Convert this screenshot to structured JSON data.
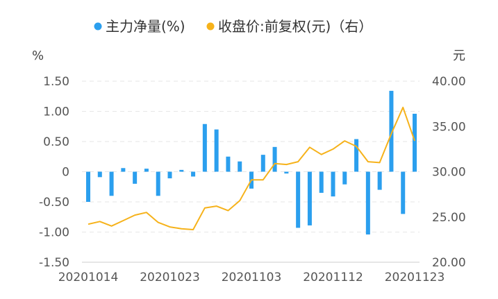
{
  "chart_data": {
    "type": "bar+line",
    "legend": [
      {
        "name": "主力净量(%)",
        "color": "#2b9fee"
      },
      {
        "name": "收盘价:前复权(元)（右）",
        "color": "#f6b21a"
      }
    ],
    "left_unit": "%",
    "right_unit": "元",
    "left_ylim": [
      -1.5,
      1.5
    ],
    "left_ticks": [
      "1.50",
      "1.00",
      "0.50",
      "0",
      "-0.50",
      "-1.00",
      "-1.50"
    ],
    "right_ylim": [
      20,
      40
    ],
    "right_ticks": [
      "40.00",
      "35.00",
      "30.00",
      "25.00",
      "20.00"
    ],
    "x_tick_labels": [
      "20201014",
      "20201023",
      "20201103",
      "20201112",
      "20201123"
    ],
    "x_tick_indices": [
      0,
      7,
      14,
      21,
      28
    ],
    "series": [
      {
        "name": "主力净量(%)",
        "type": "bar",
        "axis": "left",
        "values": [
          -0.5,
          -0.09,
          -0.4,
          0.06,
          -0.2,
          0.05,
          -0.4,
          -0.11,
          0.03,
          -0.08,
          0.79,
          0.7,
          0.25,
          0.17,
          -0.28,
          0.28,
          0.41,
          -0.03,
          -0.93,
          -0.89,
          -0.35,
          -0.41,
          -0.21,
          0.54,
          -1.04,
          -0.3,
          1.34,
          -0.7,
          0.96
        ]
      },
      {
        "name": "收盘价:前复权(元)（右）",
        "type": "line",
        "axis": "right",
        "values": [
          24.2,
          24.5,
          24.0,
          24.6,
          25.2,
          25.5,
          24.4,
          23.9,
          23.7,
          23.6,
          26.0,
          26.2,
          25.7,
          26.8,
          29.1,
          29.1,
          30.9,
          30.8,
          31.1,
          32.7,
          31.9,
          32.5,
          33.4,
          32.8,
          31.1,
          31.0,
          34.2,
          37.1,
          33.4
        ]
      }
    ]
  }
}
